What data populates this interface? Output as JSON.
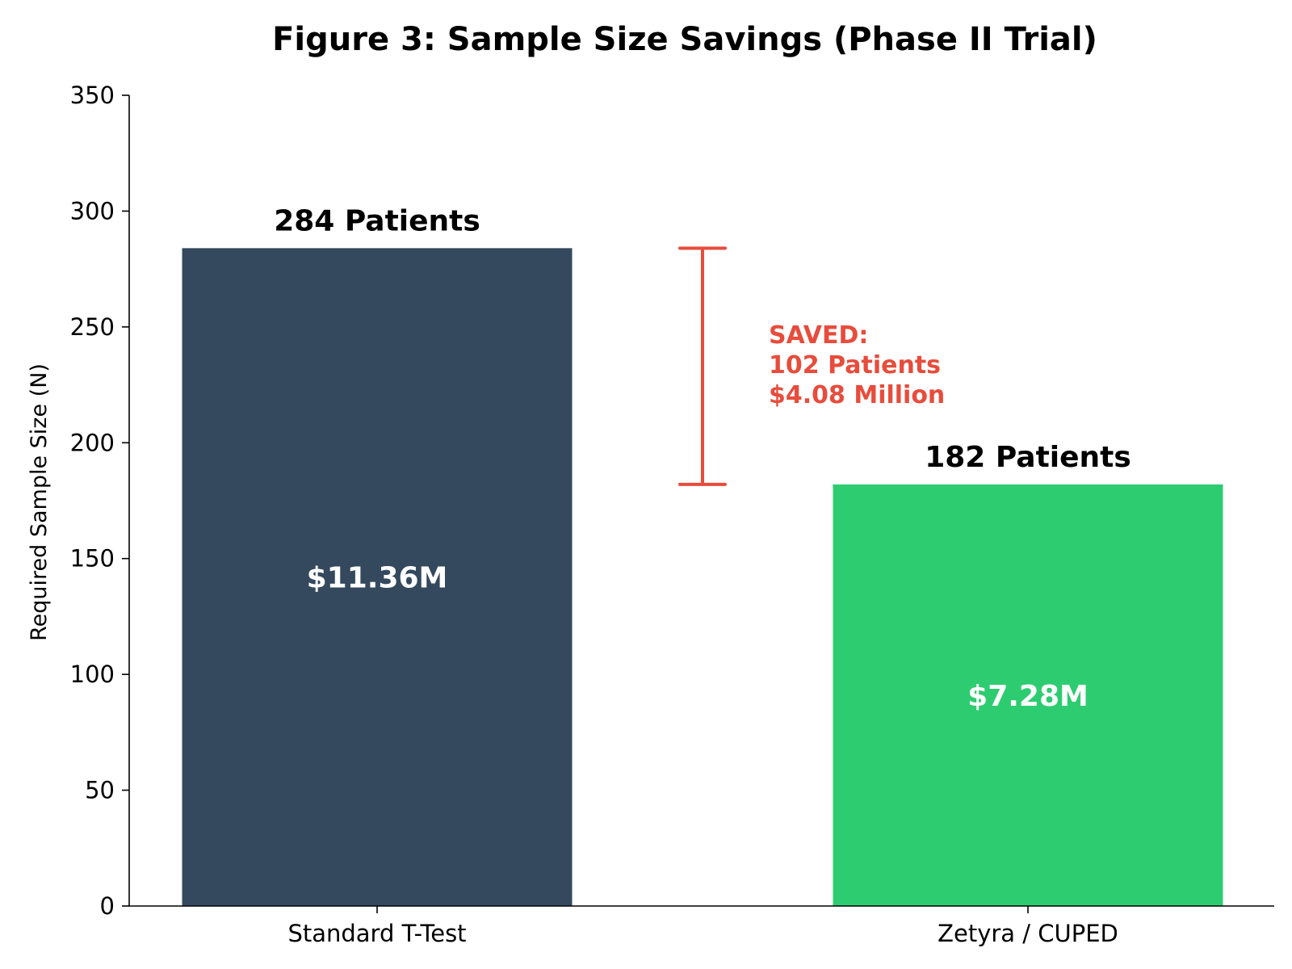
{
  "chart_data": {
    "type": "bar",
    "title": "Figure 3: Sample Size Savings (Phase II Trial)",
    "xlabel": "",
    "ylabel": "Required Sample Size (N)",
    "ylim": [
      0,
      350
    ],
    "yticks": [
      0,
      50,
      100,
      150,
      200,
      250,
      300,
      350
    ],
    "grid": false,
    "categories": [
      "Standard T-Test",
      "Zetyra / CUPED"
    ],
    "values": [
      284,
      182
    ],
    "colors": [
      "#34495e",
      "#2ecc71"
    ],
    "top_labels": [
      "284 Patients",
      "182 Patients"
    ],
    "inner_labels": [
      "$11.36M",
      "$7.28M"
    ],
    "annotation": {
      "bracket_from": 284,
      "bracket_to": 182,
      "color": "#e74c3c",
      "lines": [
        "SAVED:",
        "102 Patients",
        "$4.08 Million"
      ]
    }
  }
}
